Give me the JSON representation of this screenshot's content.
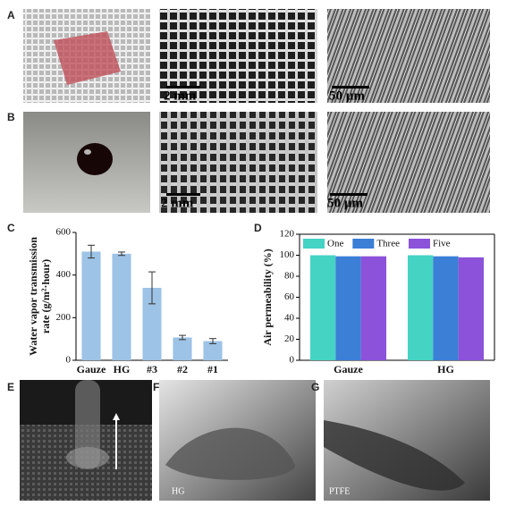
{
  "panel_labels": [
    "A",
    "B",
    "C",
    "D",
    "E",
    "F",
    "G"
  ],
  "scale_bars": [
    "2 mm",
    "50 µm",
    "2 mm",
    "50 µm"
  ],
  "image_labels": [
    "HG",
    "PTFE"
  ],
  "chart_data": [
    {
      "type": "bar",
      "ylabel": [
        "Water vapor transmission",
        "rate (g/m²·hour)"
      ],
      "categories": [
        "Gauze",
        "HG",
        "#3",
        "#2",
        "#1"
      ],
      "values": [
        510,
        500,
        340,
        107,
        90
      ],
      "errors": [
        30,
        8,
        75,
        10,
        12
      ],
      "color": "#9dc3e6",
      "ylim": [
        0,
        600
      ],
      "yticks": [
        0,
        200,
        400,
        600
      ]
    },
    {
      "type": "bar",
      "ylabel": "Air permeability (%)",
      "categories": [
        "Gauze",
        "HG"
      ],
      "series": [
        {
          "name": "One",
          "color": "#45d3c4",
          "values": [
            100,
            100
          ]
        },
        {
          "name": "Three",
          "color": "#3b7fd6",
          "values": [
            99,
            99
          ]
        },
        {
          "name": "Five",
          "color": "#8c52d9",
          "values": [
            99,
            98
          ]
        }
      ],
      "ylim": [
        0,
        120
      ],
      "yticks": [
        0,
        20,
        40,
        60,
        80,
        100,
        120
      ],
      "legend": "top"
    }
  ]
}
